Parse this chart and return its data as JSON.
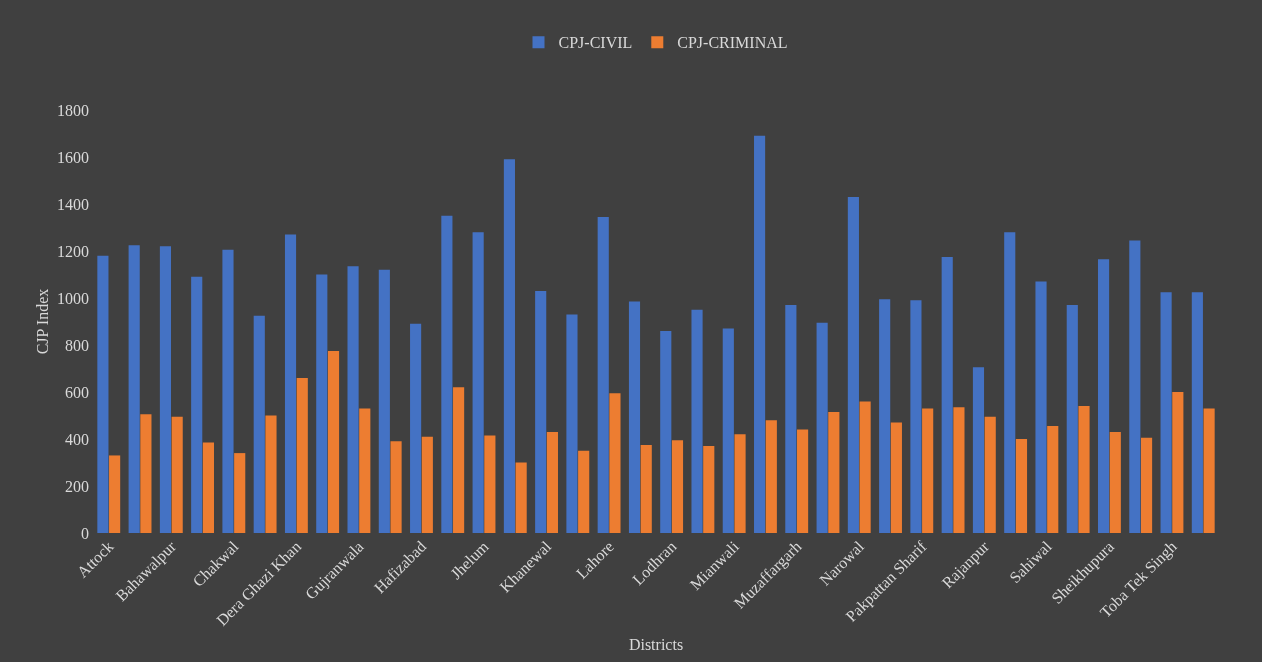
{
  "chart_data": {
    "type": "bar",
    "xlabel": "Districts",
    "ylabel": "CJP Index",
    "categories": [
      "Attock",
      null,
      "Bahawalpur",
      null,
      "Chakwal",
      null,
      "Dera Ghazi Khan",
      null,
      "Gujranwala",
      null,
      "Hafizabad",
      null,
      "Jhelum",
      null,
      "Khanewal",
      null,
      "Lahore",
      null,
      "Lodhran",
      null,
      "Mianwali",
      null,
      "Muzaffargarh",
      null,
      "Narowal",
      null,
      "Pakpattan Sharif",
      null,
      "Rajanpur",
      null,
      "Sahiwal",
      null,
      "Sheikhupura",
      null,
      "Toba Tek Singh",
      null
    ],
    "series": [
      {
        "name": "CPJ-CIVIL",
        "color": "#4472c4",
        "values": [
          1180,
          1225,
          1220,
          1090,
          1205,
          925,
          1270,
          1100,
          1135,
          1120,
          890,
          1350,
          1280,
          1590,
          1030,
          930,
          1345,
          985,
          860,
          950,
          870,
          1690,
          970,
          895,
          1430,
          995,
          990,
          1175,
          705,
          1280,
          1070,
          970,
          1165,
          1245,
          1025,
          1025
        ]
      },
      {
        "name": "CPJ-CRIMINAL",
        "color": "#ed7d31",
        "values": [
          330,
          505,
          495,
          385,
          340,
          500,
          660,
          775,
          530,
          390,
          410,
          620,
          415,
          300,
          430,
          350,
          595,
          375,
          395,
          370,
          420,
          480,
          440,
          515,
          560,
          470,
          530,
          535,
          495,
          400,
          455,
          540,
          430,
          405,
          600,
          530
        ]
      }
    ],
    "ylim": [
      0,
      1800
    ],
    "yticks": [
      0,
      200,
      400,
      600,
      800,
      1000,
      1200,
      1400,
      1600,
      1800
    ],
    "grid": false,
    "legend": "top"
  }
}
